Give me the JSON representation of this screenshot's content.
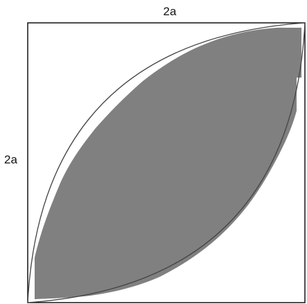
{
  "labels": {
    "top_side": "2a",
    "left_side": "2a"
  },
  "colors": {
    "fill": "#808080",
    "stroke": "#444444",
    "square_stroke": "#111111",
    "background": "#ffffff"
  }
}
